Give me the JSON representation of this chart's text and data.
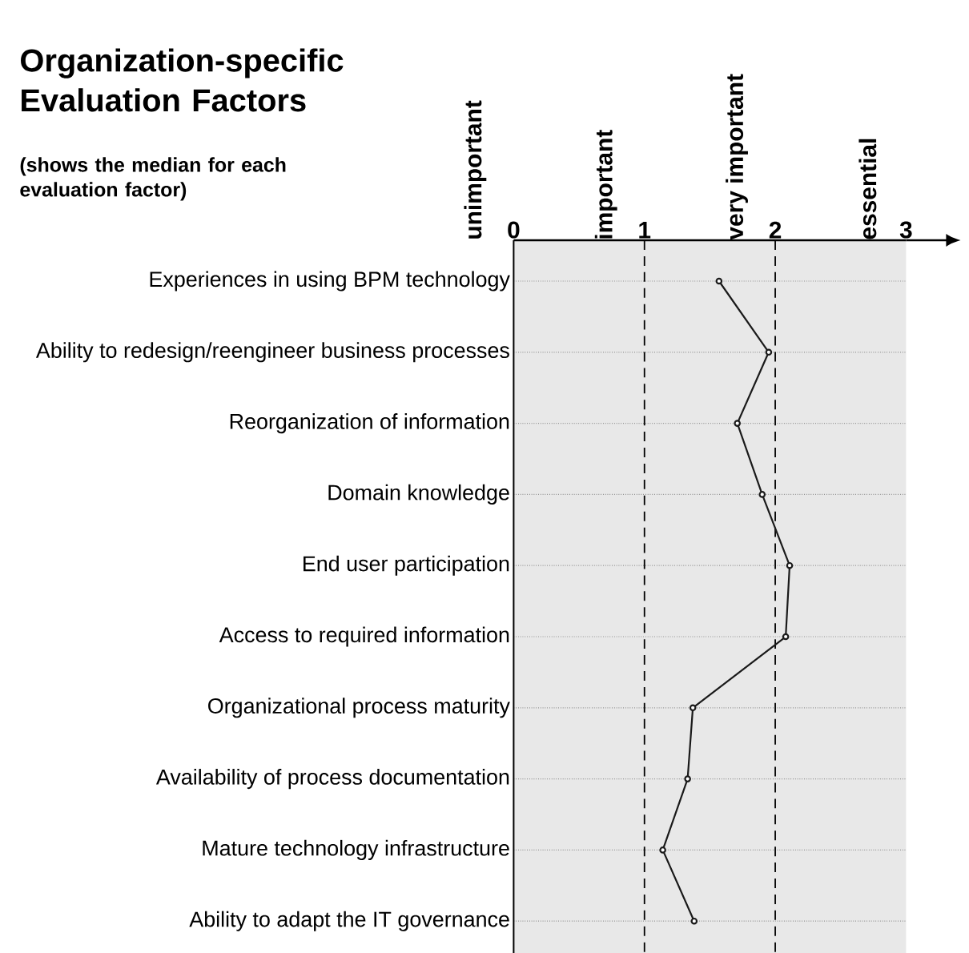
{
  "chart_data": {
    "type": "line",
    "orientation": "horizontal",
    "title": "Organization-specific Evaluation Factors",
    "subtitle": "(shows the median for each evaluation factor)",
    "categories": [
      "Experiences in using BPM technology",
      "Ability to redesign/reengineer business processes",
      "Reorganization of information",
      "Domain knowledge",
      "End user participation",
      "Access to required information",
      "Organizational process maturity",
      "Availability of process documentation",
      "Mature technology infrastructure",
      "Ability to adapt the IT governance"
    ],
    "values": [
      1.57,
      1.95,
      1.71,
      1.9,
      2.11,
      2.08,
      1.37,
      1.33,
      1.14,
      1.38
    ],
    "color": "#1a1a1a",
    "marker": "circle",
    "line_style": "solid",
    "xlim": [
      0,
      3
    ],
    "xticks": [
      0,
      1,
      2,
      3
    ],
    "annotations": [
      "unimportant",
      "important",
      "very important",
      "essential"
    ],
    "ref_lines": [
      {
        "axis": "x",
        "value": 1,
        "color": "#000000",
        "line_style": "dashed"
      },
      {
        "axis": "x",
        "value": 2,
        "color": "#000000",
        "line_style": "dashed"
      }
    ],
    "grid": "y"
  }
}
